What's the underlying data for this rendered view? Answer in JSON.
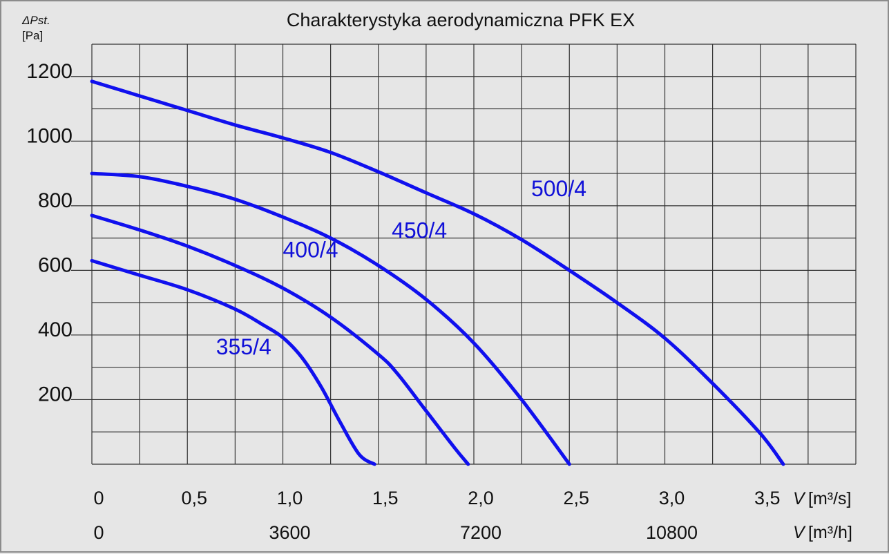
{
  "chart_data": {
    "type": "line",
    "title": "Charakterystyka aerodynamiczna PFK EX",
    "ylabel": {
      "symbol": "ΔPst.",
      "unit": "[Pa]"
    },
    "xlabel": {
      "symbol": "V",
      "unit": "[m³/s]"
    },
    "xlabel2": {
      "symbol": "V",
      "unit": "[m³/h]"
    },
    "xlim": [
      0,
      4
    ],
    "ylim": [
      0,
      1300
    ],
    "y_ticks": [
      {
        "value": 200,
        "label": "200"
      },
      {
        "value": 400,
        "label": "400"
      },
      {
        "value": 600,
        "label": "600"
      },
      {
        "value": 800,
        "label": "800"
      },
      {
        "value": 1000,
        "label": "1000"
      },
      {
        "value": 1200,
        "label": "1200"
      }
    ],
    "x_ticks": [
      {
        "value": 0,
        "label": "0"
      },
      {
        "value": 0.5,
        "label": "0,5"
      },
      {
        "value": 1.0,
        "label": "1,0"
      },
      {
        "value": 1.5,
        "label": "1,5"
      },
      {
        "value": 2.0,
        "label": "2,0"
      },
      {
        "value": 2.5,
        "label": "2,5"
      },
      {
        "value": 3.0,
        "label": "3,0"
      },
      {
        "value": 3.5,
        "label": "3,5"
      }
    ],
    "x2_ticks": [
      {
        "value": 0,
        "label": "0"
      },
      {
        "value": 1.0,
        "label": "3600"
      },
      {
        "value": 2.0,
        "label": "7200"
      },
      {
        "value": 3.0,
        "label": "10800"
      }
    ],
    "grid": true,
    "color": "#1010ee",
    "label_color": "#1010d8",
    "series": [
      {
        "name": "355/4",
        "label_at": [
          0.65,
          340
        ],
        "points": [
          [
            0,
            630
          ],
          [
            0.25,
            585
          ],
          [
            0.5,
            540
          ],
          [
            0.75,
            480
          ],
          [
            0.9,
            430
          ],
          [
            1.0,
            392
          ],
          [
            1.1,
            330
          ],
          [
            1.2,
            240
          ],
          [
            1.3,
            130
          ],
          [
            1.4,
            30
          ],
          [
            1.48,
            0
          ]
        ]
      },
      {
        "name": "400/4",
        "label_at": [
          1.0,
          640
        ],
        "points": [
          [
            0,
            770
          ],
          [
            0.25,
            725
          ],
          [
            0.5,
            675
          ],
          [
            0.75,
            615
          ],
          [
            1.0,
            545
          ],
          [
            1.25,
            455
          ],
          [
            1.5,
            340
          ],
          [
            1.6,
            280
          ],
          [
            1.75,
            165
          ],
          [
            1.9,
            50
          ],
          [
            1.97,
            0
          ]
        ]
      },
      {
        "name": "450/4",
        "label_at": [
          1.57,
          700
        ],
        "points": [
          [
            0,
            900
          ],
          [
            0.25,
            890
          ],
          [
            0.5,
            860
          ],
          [
            0.75,
            820
          ],
          [
            1.0,
            765
          ],
          [
            1.25,
            700
          ],
          [
            1.5,
            615
          ],
          [
            1.75,
            510
          ],
          [
            2.0,
            375
          ],
          [
            2.25,
            200
          ],
          [
            2.5,
            0
          ]
        ]
      },
      {
        "name": "500/4",
        "label_at": [
          2.3,
          830
        ],
        "points": [
          [
            0,
            1185
          ],
          [
            0.25,
            1140
          ],
          [
            0.5,
            1095
          ],
          [
            0.75,
            1050
          ],
          [
            1.0,
            1010
          ],
          [
            1.25,
            965
          ],
          [
            1.5,
            905
          ],
          [
            1.75,
            840
          ],
          [
            2.0,
            775
          ],
          [
            2.25,
            695
          ],
          [
            2.5,
            600
          ],
          [
            2.75,
            500
          ],
          [
            3.0,
            390
          ],
          [
            3.25,
            250
          ],
          [
            3.5,
            95
          ],
          [
            3.62,
            0
          ]
        ]
      }
    ]
  }
}
